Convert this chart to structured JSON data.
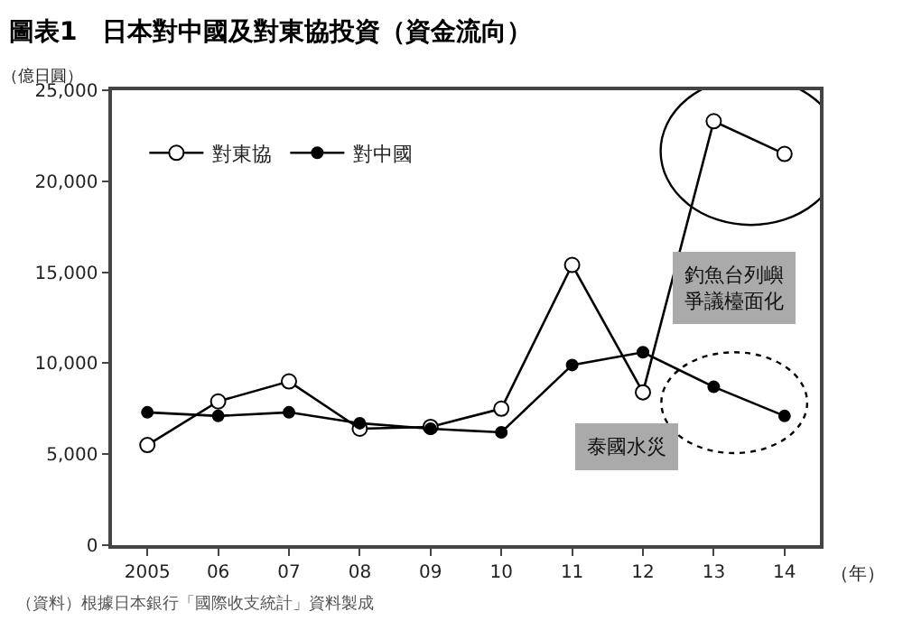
{
  "chart_data": {
    "type": "line",
    "title": "圖表1　日本對中國及對東協投資（資金流向）",
    "ylabel": "（億日圓）",
    "xlabel": "（年）",
    "categories": [
      "2005",
      "06",
      "07",
      "08",
      "09",
      "10",
      "11",
      "12",
      "13",
      "14"
    ],
    "series": [
      {
        "name": "對東協",
        "color": "#000000",
        "values": [
          5500,
          7900,
          9000,
          6400,
          6500,
          7500,
          15400,
          8400,
          23300,
          21500
        ]
      },
      {
        "name": "對中國",
        "color": "#000000",
        "values": [
          7300,
          7100,
          7300,
          6700,
          6400,
          6200,
          9900,
          10600,
          8700,
          7100
        ]
      }
    ],
    "ylim": [
      0,
      25000
    ],
    "yticks": [
      0,
      {
        "value": 5000,
        "label": "5,000"
      },
      {
        "value": 10000,
        "label": "10,000"
      },
      {
        "value": 15000,
        "label": "15,000"
      },
      {
        "value": 20000,
        "label": "20,000"
      },
      {
        "value": 25000,
        "label": "25,000"
      }
    ],
    "legend": "top left",
    "marker": "circle",
    "line_style": "solid",
    "annotations": [
      "釣魚台列嶼爭議檯面化",
      "泰國水災",
      "（資料）根據日本銀行「國際收支統計」資料製成"
    ]
  }
}
